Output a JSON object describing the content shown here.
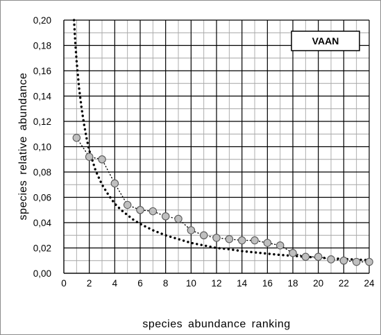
{
  "chart_data": {
    "type": "scatter",
    "title": "",
    "xlabel": "species abundance ranking",
    "ylabel": "species relative abundance",
    "xlim": [
      0,
      24
    ],
    "ylim": [
      0,
      0.2
    ],
    "x_ticks": [
      "0",
      "2",
      "4",
      "6",
      "8",
      "10",
      "12",
      "14",
      "16",
      "18",
      "20",
      "22",
      "24"
    ],
    "y_ticks": [
      "0,00",
      "0,02",
      "0,04",
      "0,06",
      "0,08",
      "0,10",
      "0,12",
      "0,14",
      "0,16",
      "0,18",
      "0,20"
    ],
    "x_tick_values": [
      0,
      2,
      4,
      6,
      8,
      10,
      12,
      14,
      16,
      18,
      20,
      22,
      24
    ],
    "y_tick_values": [
      0,
      0.02,
      0.04,
      0.06,
      0.08,
      0.1,
      0.12,
      0.14,
      0.16,
      0.18,
      0.2
    ],
    "grid": true,
    "grid_minor_x_step": 1,
    "grid_minor_y_step": 0.01,
    "legend": {
      "label": "VAAN",
      "placement": "top-right"
    },
    "series": [
      {
        "style": "circle markers joined by a fine dotted line",
        "marker_color": "#bfbfbf",
        "x": [
          1,
          2,
          3,
          4,
          5,
          6,
          7,
          8,
          9,
          10,
          11,
          12,
          13,
          14,
          15,
          16,
          17,
          18,
          19,
          20,
          21,
          22,
          23,
          24
        ],
        "y": [
          0.107,
          0.092,
          0.09,
          0.071,
          0.054,
          0.05,
          0.049,
          0.045,
          0.043,
          0.034,
          0.03,
          0.028,
          0.027,
          0.026,
          0.026,
          0.024,
          0.022,
          0.016,
          0.013,
          0.013,
          0.011,
          0.01,
          0.009,
          0.009
        ]
      },
      {
        "style": "heavy dotted curve",
        "x": [
          0.8,
          0.9,
          1,
          1.2,
          1.4,
          1.6,
          1.8,
          2,
          2.5,
          3,
          3.5,
          4,
          4.5,
          5,
          5.5,
          6,
          7,
          8,
          9,
          10,
          11,
          12,
          13,
          14,
          15,
          16,
          17,
          18,
          19,
          20,
          21,
          22,
          23,
          24
        ],
        "y": [
          0.2,
          0.182,
          0.168,
          0.146,
          0.13,
          0.117,
          0.106,
          0.097,
          0.081,
          0.07,
          0.062,
          0.055,
          0.05,
          0.046,
          0.042,
          0.039,
          0.034,
          0.03,
          0.027,
          0.024,
          0.022,
          0.02,
          0.019,
          0.0175,
          0.0165,
          0.0155,
          0.0145,
          0.0138,
          0.013,
          0.0124,
          0.0118,
          0.0113,
          0.0108,
          0.0104
        ]
      }
    ]
  }
}
